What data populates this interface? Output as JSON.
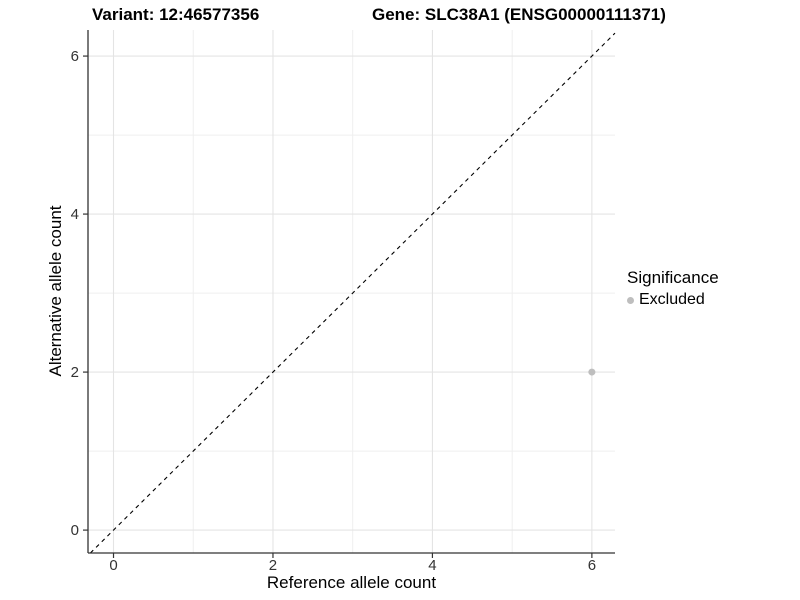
{
  "header": {
    "variant_title": "Variant: 12:46577356",
    "gene_title": "Gene: SLC38A1 (ENSG00000111371)"
  },
  "axes": {
    "x_title": "Reference allele count",
    "y_title": "Alternative allele count"
  },
  "legend": {
    "title": "Significance",
    "items": [
      {
        "label": "Excluded",
        "color": "#bebebe"
      }
    ]
  },
  "style": {
    "background": "#ffffff",
    "grid_major": "#e4e4e4",
    "grid_minor": "#efefef",
    "axis_line_color": "#333333",
    "tick_label_color": "#333333",
    "reference_line_color": "#000000",
    "point_color": "#bebebe"
  },
  "chart_data": {
    "type": "scatter",
    "title": "Variant: 12:46577356 | Gene: SLC38A1 (ENSG00000111371)",
    "xlabel": "Reference allele count",
    "ylabel": "Alternative allele count",
    "xlim": [
      -0.32,
      6.29
    ],
    "ylim": [
      -0.29,
      6.33
    ],
    "x_ticks": [
      0,
      2,
      4,
      6
    ],
    "y_ticks": [
      0,
      2,
      4,
      6
    ],
    "minor_gridlines_x": [
      1,
      3,
      5
    ],
    "minor_gridlines_y": [
      1,
      3,
      5
    ],
    "grid": true,
    "legend_position": "right",
    "legend_title": "Significance",
    "reference_line": {
      "kind": "identity",
      "style": "dashed",
      "color": "#000000"
    },
    "series": [
      {
        "name": "Excluded",
        "color": "#bebebe",
        "points": [
          {
            "x": 6,
            "y": 2
          }
        ]
      }
    ]
  }
}
